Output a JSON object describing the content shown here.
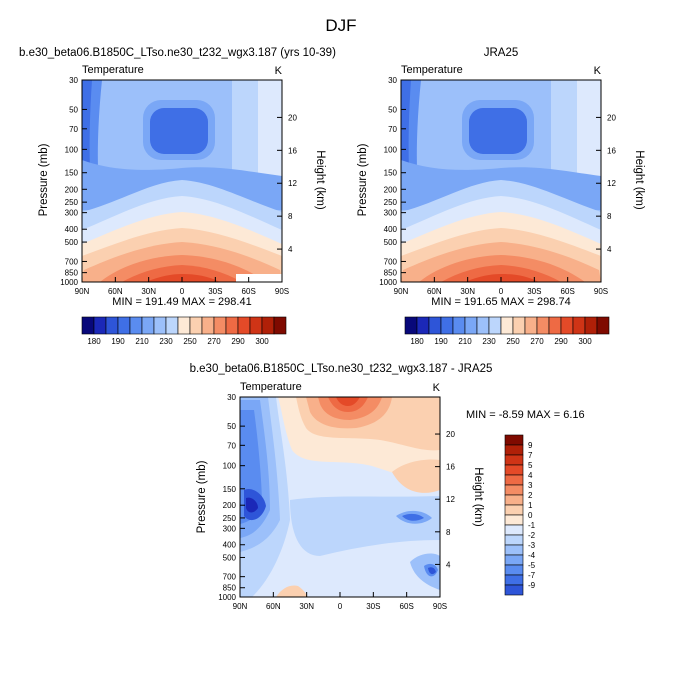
{
  "page_title": "DJF",
  "colors": {
    "blue_scale": [
      "#08087a",
      "#1b28b8",
      "#2e55d8",
      "#3f6fe6",
      "#5a8cf0",
      "#7aa7f6",
      "#9cc0fa",
      "#bcd6fc",
      "#dde9fd"
    ],
    "red_scale": [
      "#fde9d6",
      "#fbd0b0",
      "#f8b08a",
      "#f48c64",
      "#ee6a44",
      "#e44a28",
      "#cf3416",
      "#b02008",
      "#7f0a00"
    ]
  },
  "chart_data": [
    {
      "type": "heatmap",
      "title": "b.e30_beta06.B1850C_LTso.ne30_t232_wgx3.187 (yrs 10-39)",
      "variable": "Temperature",
      "units": "K",
      "ylabel": "Pressure (mb)",
      "y2label": "Height (km)",
      "x_ticks": [
        "90N",
        "60N",
        "30N",
        "0",
        "30S",
        "60S",
        "90S"
      ],
      "y_ticks": [
        "30",
        "50",
        "70",
        "100",
        "150",
        "200",
        "250",
        "300",
        "400",
        "500",
        "700",
        "850",
        "1000"
      ],
      "y2_ticks": [
        "20",
        "16",
        "12",
        "8",
        "4"
      ],
      "stats": "MIN = 191.49  MAX = 298.41",
      "min": 191.49,
      "max": 298.41,
      "colorbar_labels": [
        "180",
        "190",
        "210",
        "230",
        "250",
        "270",
        "290",
        "300"
      ]
    },
    {
      "type": "heatmap",
      "title": "JRA25",
      "variable": "Temperature",
      "units": "K",
      "ylabel": "Pressure (mb)",
      "y2label": "Height (km)",
      "x_ticks": [
        "90N",
        "60N",
        "30N",
        "0",
        "30S",
        "60S",
        "90S"
      ],
      "y_ticks": [
        "30",
        "50",
        "70",
        "100",
        "150",
        "200",
        "250",
        "300",
        "400",
        "500",
        "700",
        "850",
        "1000"
      ],
      "y2_ticks": [
        "20",
        "16",
        "12",
        "8",
        "4"
      ],
      "stats": "MIN = 191.65  MAX = 298.74",
      "min": 191.65,
      "max": 298.74,
      "colorbar_labels": [
        "180",
        "190",
        "210",
        "230",
        "250",
        "270",
        "290",
        "300"
      ]
    },
    {
      "type": "heatmap",
      "title": "b.e30_beta06.B1850C_LTso.ne30_t232_wgx3.187 - JRA25",
      "variable": "Temperature",
      "units": "K",
      "ylabel": "Pressure (mb)",
      "y2label": "Height (km)",
      "x_ticks": [
        "90N",
        "60N",
        "30N",
        "0",
        "30S",
        "60S",
        "90S"
      ],
      "y_ticks": [
        "30",
        "50",
        "70",
        "100",
        "150",
        "200",
        "250",
        "300",
        "400",
        "500",
        "700",
        "850",
        "1000"
      ],
      "y2_ticks": [
        "20",
        "16",
        "12",
        "8",
        "4"
      ],
      "stats": "MIN = -8.59  MAX =  6.16",
      "min": -8.59,
      "max": 6.16,
      "colorbar_labels": [
        "9",
        "7",
        "5",
        "4",
        "3",
        "2",
        "1",
        "0",
        "-1",
        "-2",
        "-3",
        "-4",
        "-5",
        "-7",
        "-9"
      ]
    }
  ]
}
